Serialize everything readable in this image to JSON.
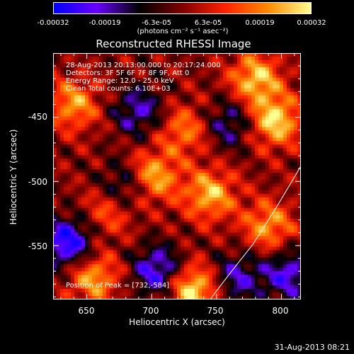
{
  "colorbar": {
    "ticks": [
      "-0.00032",
      "-0.00019",
      "-6.3e-05",
      "6.3e-05",
      "0.00019",
      "0.00032"
    ],
    "unit": "(photons cm⁻² s⁻¹ asec⁻²)",
    "stops": [
      "#0000ff",
      "#6a00ff",
      "#000000",
      "#7f0000",
      "#ff2200",
      "#ff8a00",
      "#ffff90"
    ]
  },
  "chart_data": {
    "type": "heatmap",
    "title": "Reconstructed RHESSI Image",
    "xlabel": "Heliocentric X (arcsec)",
    "ylabel": "Heliocentric Y (arcsec)",
    "xlim": [
      624,
      815
    ],
    "ylim": [
      -592,
      -400
    ],
    "xticks": [
      650,
      700,
      750,
      800
    ],
    "yticks": [
      -450,
      -500,
      -550
    ],
    "peak": {
      "x": 732,
      "y": -584
    },
    "limb_curve": [
      [
        745,
        -592
      ],
      [
        760,
        -572
      ],
      [
        778,
        -549
      ],
      [
        795,
        -522
      ],
      [
        808,
        -500
      ],
      [
        815,
        -488
      ]
    ],
    "hotspots": [
      {
        "x": 732,
        "y": -584,
        "v": 1.0
      },
      {
        "x": 700,
        "y": -497,
        "v": 0.88
      },
      {
        "x": 745,
        "y": -510,
        "v": 0.8
      },
      {
        "x": 795,
        "y": -453,
        "v": 0.92
      },
      {
        "x": 780,
        "y": -420,
        "v": 0.85
      },
      {
        "x": 640,
        "y": -440,
        "v": 0.7
      },
      {
        "x": 655,
        "y": -575,
        "v": 0.75
      },
      {
        "x": 790,
        "y": -535,
        "v": 0.7
      },
      {
        "x": 725,
        "y": -460,
        "v": 0.6
      },
      {
        "x": 668,
        "y": -522,
        "v": 0.55
      }
    ],
    "coldspots": [
      {
        "x": 635,
        "y": -548,
        "v": -0.95
      },
      {
        "x": 680,
        "y": -505,
        "v": -0.7
      },
      {
        "x": 690,
        "y": -445,
        "v": -0.6
      },
      {
        "x": 705,
        "y": -570,
        "v": -0.8
      },
      {
        "x": 760,
        "y": -455,
        "v": -0.55
      },
      {
        "x": 765,
        "y": -575,
        "v": -0.6
      },
      {
        "x": 805,
        "y": -572,
        "v": -0.7
      }
    ]
  },
  "annotations": {
    "time_range": "28-Aug-2013 20:13:00.000 to 20:17:24.000",
    "detectors": "Detectors: 3F 5F 6F 7F 8F 9F, Att 0",
    "energy": "Energy Range: 12.0 - 25.0 keV",
    "clean": "Clean     Total counts: 6.10E+03",
    "peak": "Position of Peak = [732,-584]"
  },
  "footer": {
    "date": "31-Aug-2013 08:21"
  }
}
